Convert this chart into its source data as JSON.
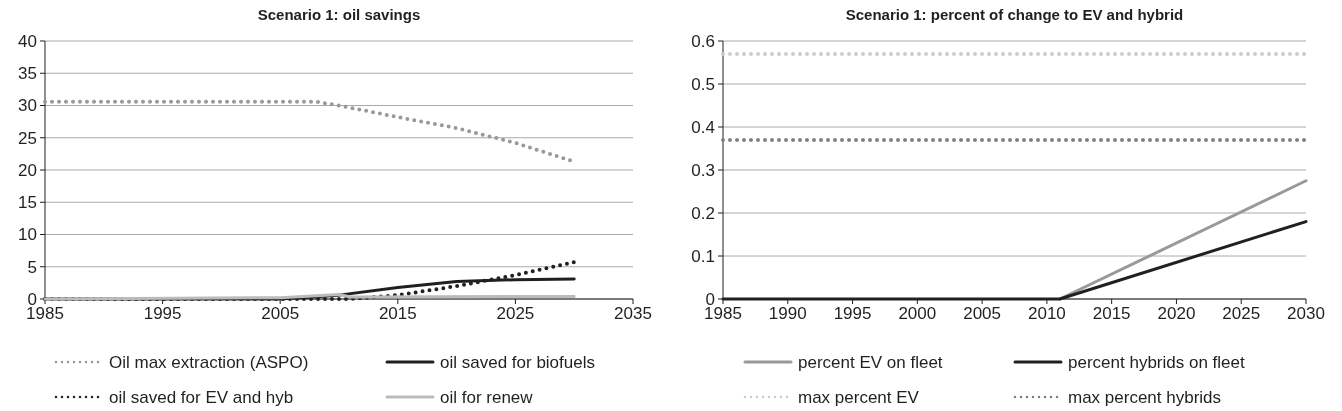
{
  "chart_data": [
    {
      "type": "line",
      "title": "Scenario 1: oil savings",
      "xlim": [
        1985,
        2035
      ],
      "xticks": [
        1985,
        1995,
        2005,
        2015,
        2025,
        2035
      ],
      "ylim": [
        0,
        40
      ],
      "yticks": [
        0,
        5,
        10,
        15,
        20,
        25,
        30,
        35,
        40
      ],
      "grid": "y",
      "legend": "bottom",
      "series": [
        {
          "name": "Oil max extraction (ASPO)",
          "color": "#999999",
          "line_style": "dotted",
          "x": [
            1985,
            2008,
            2010,
            2015,
            2020,
            2025,
            2030
          ],
          "values": [
            30.6,
            30.6,
            30.0,
            28.2,
            26.5,
            24.2,
            21.3
          ]
        },
        {
          "name": "oil saved for biofuels",
          "color": "#231f20",
          "line_style": "solid",
          "x": [
            1985,
            2005,
            2010,
            2015,
            2020,
            2025,
            2030
          ],
          "values": [
            0,
            0,
            0.6,
            1.8,
            2.7,
            3.0,
            3.1
          ]
        },
        {
          "name": "oil saved for EV and hyb",
          "color": "#231f20",
          "line_style": "dotted",
          "x": [
            1985,
            2011,
            2015,
            2020,
            2025,
            2030
          ],
          "values": [
            0,
            0,
            0.6,
            2.0,
            3.7,
            5.7
          ]
        },
        {
          "name": "oil for renew",
          "color": "#bbbbbb",
          "line_style": "solid",
          "x": [
            1985,
            2005,
            2010,
            2011,
            2030
          ],
          "values": [
            0,
            0.2,
            0.7,
            0.3,
            0.4
          ]
        }
      ]
    },
    {
      "type": "line",
      "title": "Scenario 1: percent of change to EV and hybrid",
      "xlim": [
        1985,
        2030
      ],
      "xticks": [
        1985,
        1990,
        1995,
        2000,
        2005,
        2010,
        2015,
        2020,
        2025,
        2030
      ],
      "ylim": [
        0,
        0.6
      ],
      "yticks": [
        0,
        0.1,
        0.2,
        0.3,
        0.4,
        0.5,
        0.6
      ],
      "grid": "y",
      "legend": "bottom",
      "series": [
        {
          "name": "percent EV on fleet",
          "color": "#999999",
          "line_style": "solid",
          "x": [
            2011,
            2030
          ],
          "values": [
            0,
            0.275
          ]
        },
        {
          "name": "percent hybrids on fleet",
          "color": "#231f20",
          "line_style": "solid",
          "x": [
            1985,
            2011,
            2030
          ],
          "values": [
            0,
            0,
            0.18
          ]
        },
        {
          "name": "max percent EV",
          "color": "#cccccc",
          "line_style": "dotted",
          "x": [
            1985,
            2030
          ],
          "values": [
            0.57,
            0.57
          ]
        },
        {
          "name": "max percent hybrids",
          "color": "#808080",
          "line_style": "dotted",
          "x": [
            1985,
            2030
          ],
          "values": [
            0.37,
            0.37
          ]
        }
      ]
    }
  ]
}
